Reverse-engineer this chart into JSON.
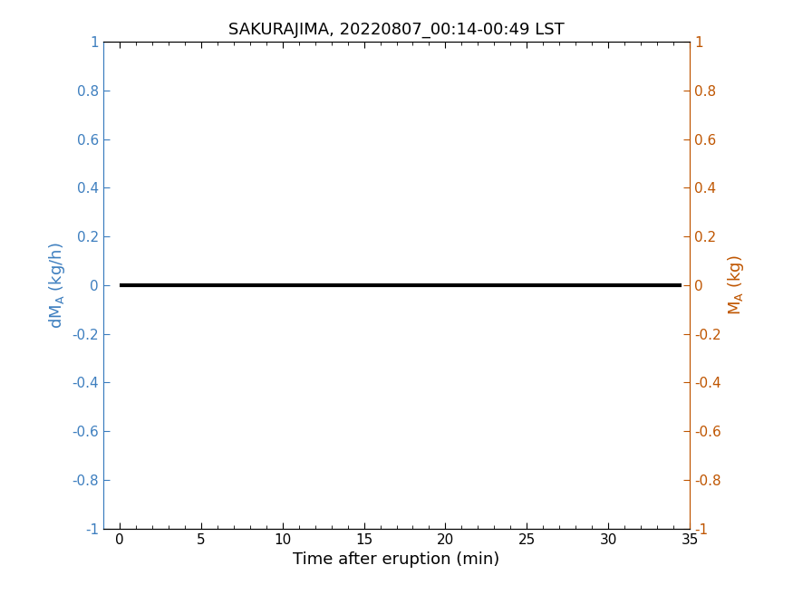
{
  "title": "SAKURAJIMA, 20220807_00:14-00:49 LST",
  "xlabel": "Time after eruption (min)",
  "ylabel_left": "dM_A (kg/h)",
  "ylabel_right": "M_A (kg)",
  "xlim": [
    -1,
    35
  ],
  "ylim": [
    -1,
    1
  ],
  "xticks": [
    0,
    5,
    10,
    15,
    20,
    25,
    30,
    35
  ],
  "yticks": [
    -1,
    -0.8,
    -0.6,
    -0.4,
    -0.2,
    0,
    0.2,
    0.4,
    0.6,
    0.8,
    1
  ],
  "ytick_labels": [
    "-1",
    "-0.8",
    "-0.6",
    "-0.4",
    "-0.2",
    "0",
    "0.2",
    "0.4",
    "0.6",
    "0.8",
    "1"
  ],
  "line_x": [
    0,
    34.5
  ],
  "line_y": [
    0,
    0
  ],
  "line_color": "#000000",
  "line_width": 3.0,
  "left_axis_color": "#3d7ebf",
  "right_axis_color": "#bf5500",
  "title_fontsize": 13,
  "label_fontsize": 13,
  "tick_fontsize": 11,
  "background_color": "#ffffff",
  "fig_width": 8.75,
  "fig_height": 6.56
}
